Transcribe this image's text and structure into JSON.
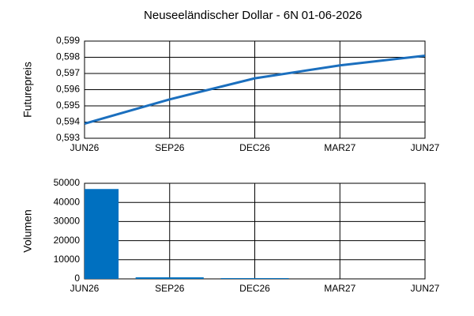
{
  "chart_data": [
    {
      "type": "line",
      "title": "Neuseeländischer Dollar - 6N",
      "subtitle": "01-06-2026",
      "y_label": "Futurepreis",
      "x": [
        "JUN26",
        "SEP26",
        "DEC26",
        "MAR27",
        "JUN27"
      ],
      "series": [
        {
          "color": "#1b6fbe",
          "values": [
            0.5939,
            0.5954,
            0.5967,
            0.5975,
            0.5981
          ]
        }
      ],
      "ylim": [
        0.593,
        0.599
      ],
      "yticks": [
        {
          "value": 0.593,
          "label": "0,593"
        },
        {
          "value": 0.594,
          "label": "0,594"
        },
        {
          "value": 0.595,
          "label": "0,595"
        },
        {
          "value": 0.596,
          "label": "0,596"
        },
        {
          "value": 0.597,
          "label": "0,597"
        },
        {
          "value": 0.598,
          "label": "0,598"
        },
        {
          "value": 0.599,
          "label": "0,599"
        }
      ],
      "grid": true
    },
    {
      "type": "bar",
      "y_label": "Volumen",
      "x": [
        "JUN26",
        "SEP26",
        "DEC26",
        "MAR27",
        "JUN27"
      ],
      "series": [
        {
          "color": "#0070c0",
          "values": [
            47000,
            800,
            400,
            0,
            0
          ]
        }
      ],
      "ylim": [
        0,
        50000
      ],
      "yticks": [
        0,
        10000,
        20000,
        30000,
        40000,
        50000
      ],
      "grid": true
    }
  ]
}
